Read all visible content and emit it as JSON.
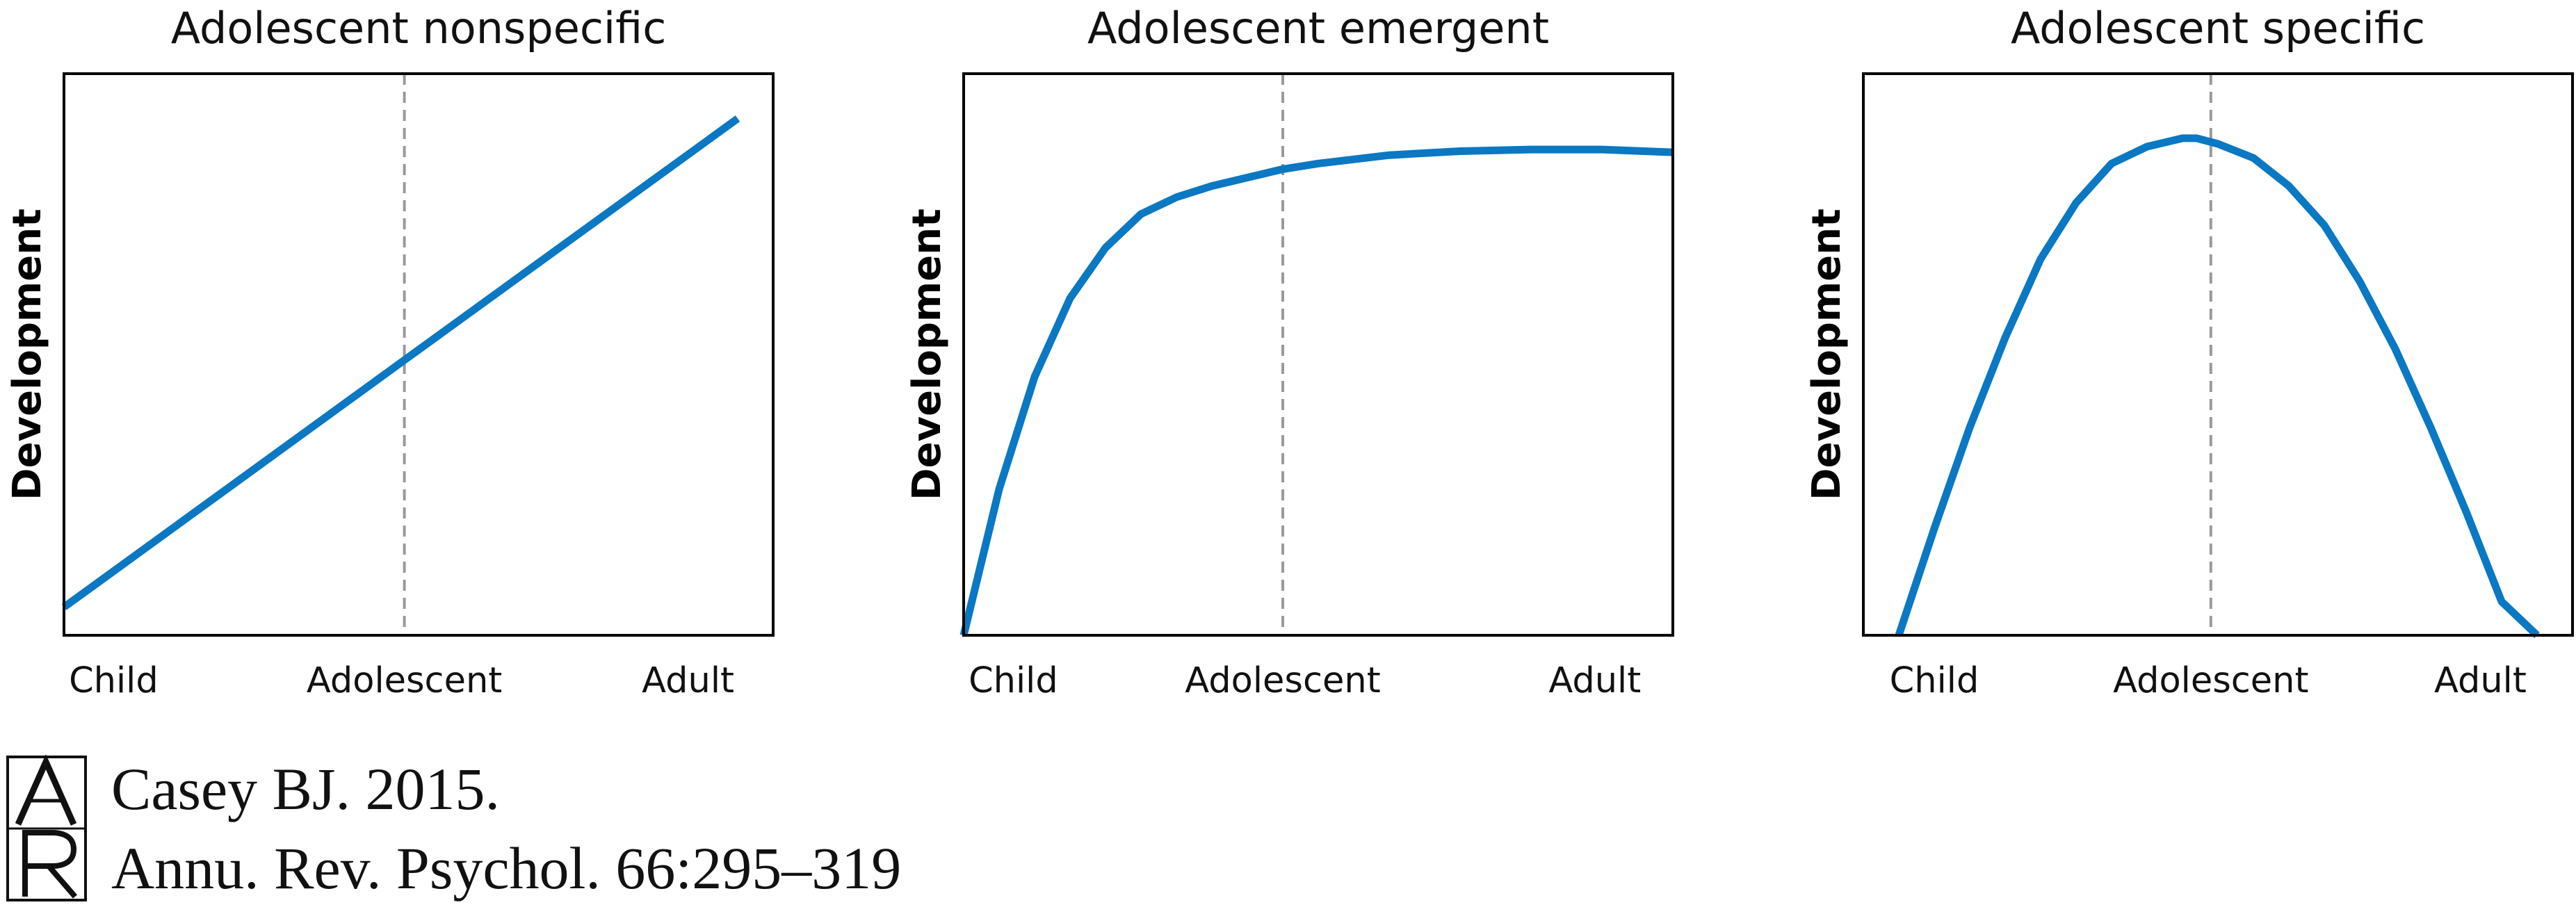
{
  "chart_data": [
    {
      "type": "line",
      "title": "Adolescent nonspecific",
      "ylabel": "Development",
      "categories": [
        "Child",
        "Adolescent",
        "Adult"
      ],
      "reference_line": "Adolescent",
      "grid": false,
      "legend": "none",
      "xlim": [
        0,
        1
      ],
      "ylim": [
        0,
        1
      ],
      "series": [
        {
          "x": [
            0.0,
            0.48,
            0.95
          ],
          "y": [
            0.05,
            0.49,
            0.92
          ]
        }
      ]
    },
    {
      "type": "line",
      "title": "Adolescent emergent",
      "ylabel": "Development",
      "categories": [
        "Child",
        "Adolescent",
        "Adult"
      ],
      "reference_line": "Adolescent",
      "grid": false,
      "legend": "none",
      "xlim": [
        0,
        1
      ],
      "ylim": [
        0,
        1
      ],
      "series": [
        {
          "x": [
            0.0,
            0.05,
            0.1,
            0.15,
            0.2,
            0.25,
            0.3,
            0.35,
            0.4,
            0.45,
            0.5,
            0.6,
            0.7,
            0.8,
            0.9,
            1.0
          ],
          "y": [
            0.0,
            0.26,
            0.46,
            0.6,
            0.69,
            0.75,
            0.78,
            0.8,
            0.815,
            0.83,
            0.84,
            0.855,
            0.862,
            0.865,
            0.865,
            0.86
          ]
        }
      ]
    },
    {
      "type": "line",
      "title": "Adolescent specific",
      "ylabel": "Development",
      "categories": [
        "Child",
        "Adolescent",
        "Adult"
      ],
      "reference_line": "Adolescent",
      "grid": false,
      "legend": "none",
      "xlim": [
        0,
        1
      ],
      "ylim": [
        0,
        1
      ],
      "series": [
        {
          "x": [
            0.05,
            0.1,
            0.15,
            0.2,
            0.25,
            0.3,
            0.35,
            0.4,
            0.45,
            0.47,
            0.5,
            0.55,
            0.6,
            0.65,
            0.7,
            0.75,
            0.8,
            0.85,
            0.9,
            0.95
          ],
          "y": [
            0.0,
            0.19,
            0.37,
            0.53,
            0.67,
            0.77,
            0.84,
            0.87,
            0.885,
            0.885,
            0.875,
            0.85,
            0.8,
            0.73,
            0.63,
            0.51,
            0.37,
            0.22,
            0.06,
            0.0
          ]
        }
      ]
    }
  ],
  "colors": {
    "curve": "#0a78c2",
    "guide": "#9a9a9a",
    "frame": "#000000"
  },
  "citation": {
    "logo_letters": "AR",
    "line1": "Casey BJ. 2015.",
    "line2": "Annu. Rev. Psychol. 66:295–319"
  }
}
